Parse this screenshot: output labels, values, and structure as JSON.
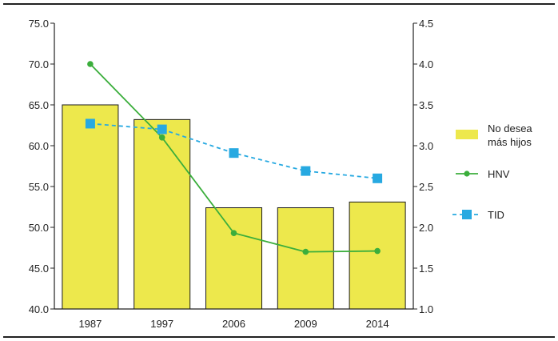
{
  "chart_data": {
    "type": "bar",
    "title": "",
    "categories": [
      "1987",
      "1997",
      "2006",
      "2009",
      "2014"
    ],
    "xlabel": "",
    "y_left": {
      "ylabel": "",
      "ylim": [
        40.0,
        75.0
      ],
      "ticks": [
        "40.0",
        "45.0",
        "50.0",
        "55.0",
        "60.0",
        "65.0",
        "70.0",
        "75.0"
      ]
    },
    "y_right": {
      "ylabel": "",
      "ylim": [
        1.0,
        4.5
      ],
      "ticks": [
        "1.0",
        "1.5",
        "2.0",
        "2.5",
        "3.0",
        "3.5",
        "4.0",
        "4.5"
      ]
    },
    "series": [
      {
        "name": "No desea más hijos",
        "name_lines": [
          "No desea",
          "más hijos"
        ],
        "kind": "bar",
        "axis": "left",
        "values": [
          65.0,
          63.2,
          52.4,
          52.4,
          53.1
        ],
        "color": "#ede84c",
        "stroke": "#1a1a1a"
      },
      {
        "name": "HNV",
        "kind": "line",
        "axis": "right",
        "values": [
          4.0,
          3.1,
          1.93,
          1.7,
          1.71
        ],
        "color": "#3bae3c"
      },
      {
        "name": "TID",
        "kind": "dashed-line",
        "axis": "right",
        "values": [
          3.27,
          3.2,
          2.91,
          2.69,
          2.6
        ],
        "color": "#27a9e1"
      }
    ],
    "legend_position": "right"
  }
}
